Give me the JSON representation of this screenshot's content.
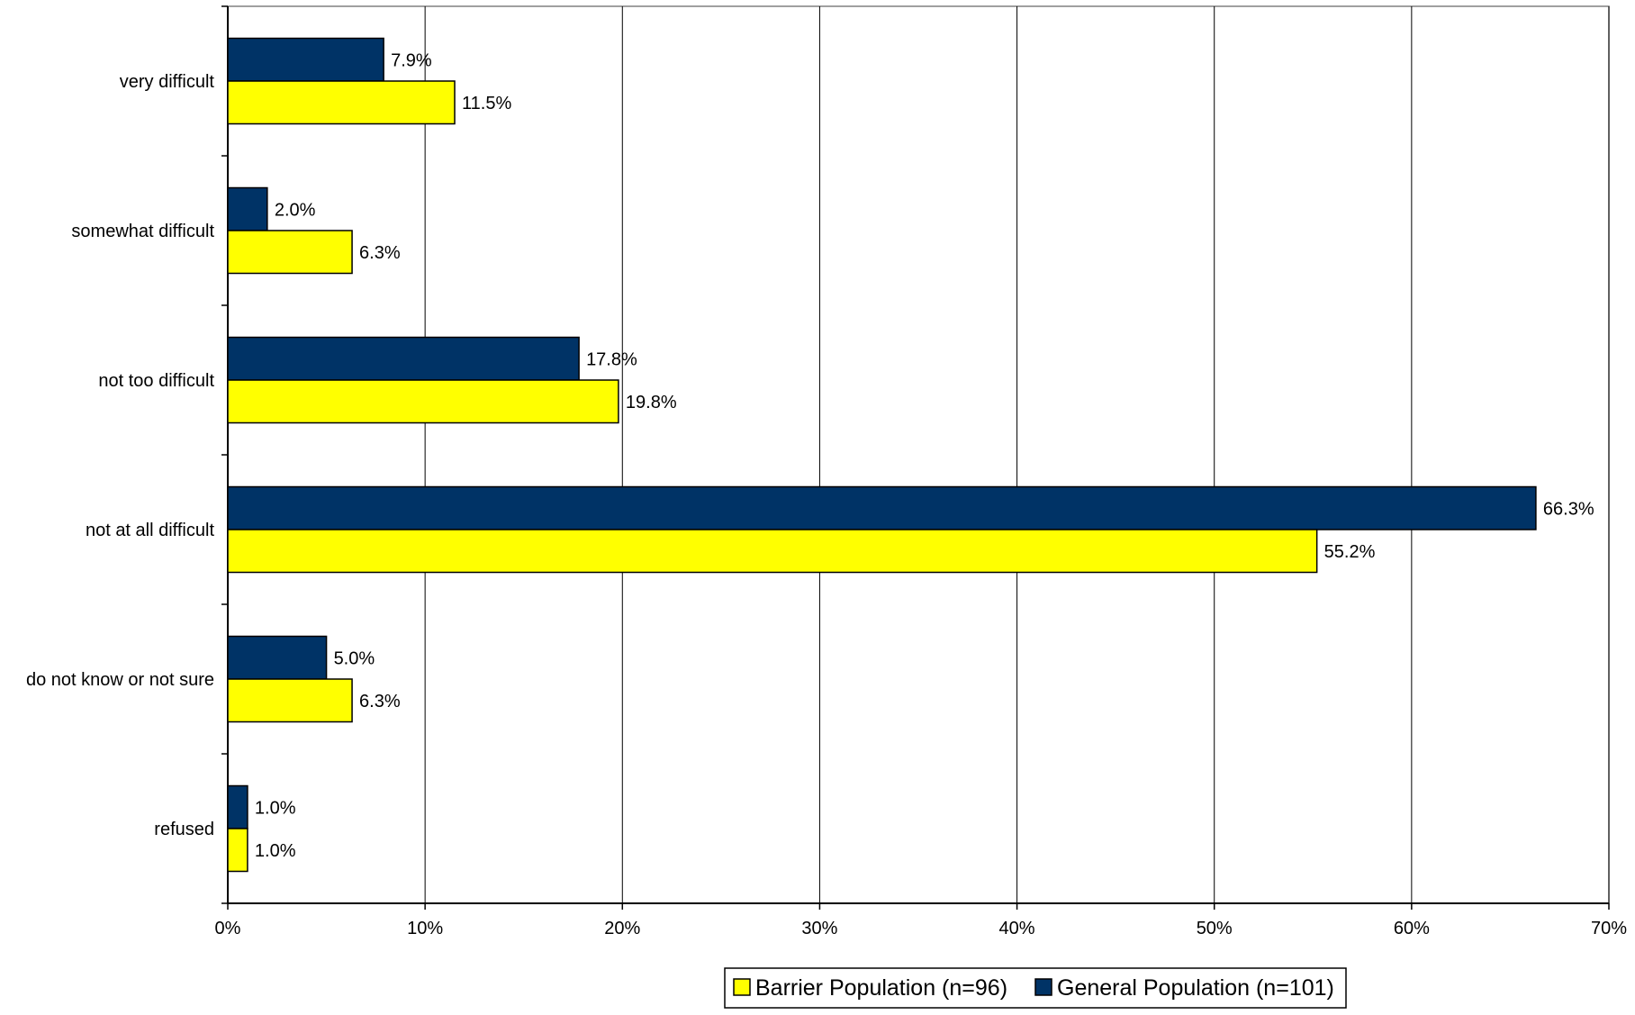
{
  "chart_data": {
    "type": "bar",
    "orientation": "horizontal",
    "title": "",
    "xlabel": "",
    "ylabel": "",
    "categories": [
      "very difficult",
      "somewhat difficult",
      "not too difficult",
      "not at all difficult",
      "do not know or not sure",
      "refused"
    ],
    "series": [
      {
        "name": "General Population (n=101)",
        "color": "#003366",
        "values": [
          7.9,
          2.0,
          17.8,
          66.3,
          5.0,
          1.0
        ],
        "labels": [
          "7.9%",
          "2.0%",
          "17.8%",
          "66.3%",
          "5.0%",
          "1.0%"
        ]
      },
      {
        "name": "Barrier Population (n=96)",
        "color": "#FFFF00",
        "values": [
          11.5,
          6.3,
          19.8,
          55.2,
          6.3,
          1.0
        ],
        "labels": [
          "11.5%",
          "6.3%",
          "19.8%",
          "55.2%",
          "6.3%",
          "1.0%"
        ]
      }
    ],
    "xlim": [
      0,
      70
    ],
    "xticks": [
      0,
      10,
      20,
      30,
      40,
      50,
      60,
      70
    ],
    "xtick_labels": [
      "0%",
      "10%",
      "20%",
      "30%",
      "40%",
      "50%",
      "60%",
      "70%"
    ],
    "grid": "vertical",
    "legend": {
      "placement": "bottom-right",
      "order": [
        "Barrier Population (n=96)",
        "General Population (n=101)"
      ]
    }
  }
}
